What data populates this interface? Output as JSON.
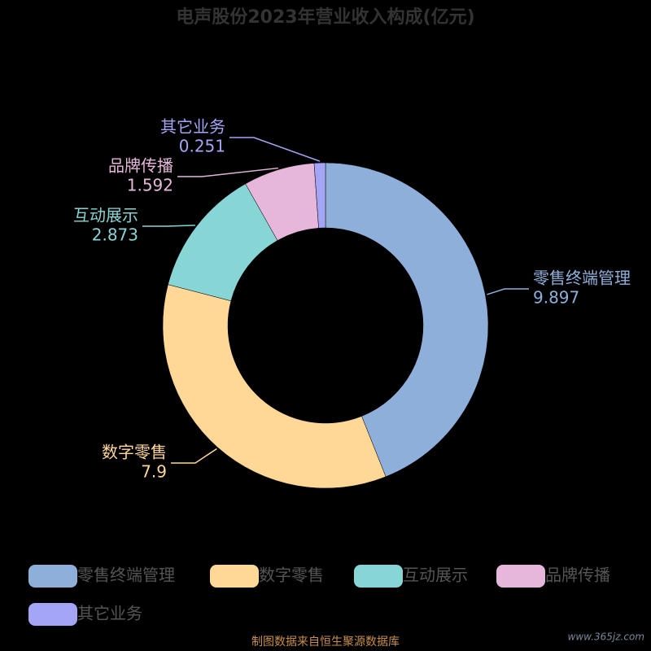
{
  "chart_data": {
    "type": "pie",
    "title": "电声股份2023年营业收入构成(亿元)",
    "categories": [
      "零售终端管理",
      "数字零售",
      "互动展示",
      "品牌传播",
      "其它业务"
    ],
    "values": [
      9.897,
      7.9,
      2.873,
      1.592,
      0.251
    ],
    "colors": [
      "#8fafdb",
      "#ffd898",
      "#88d5d5",
      "#e6b7db",
      "#a5a5f5"
    ],
    "legend": "bottom",
    "source": "制图数据来自恒生聚源数据库",
    "watermark": "www.365jz.com"
  }
}
